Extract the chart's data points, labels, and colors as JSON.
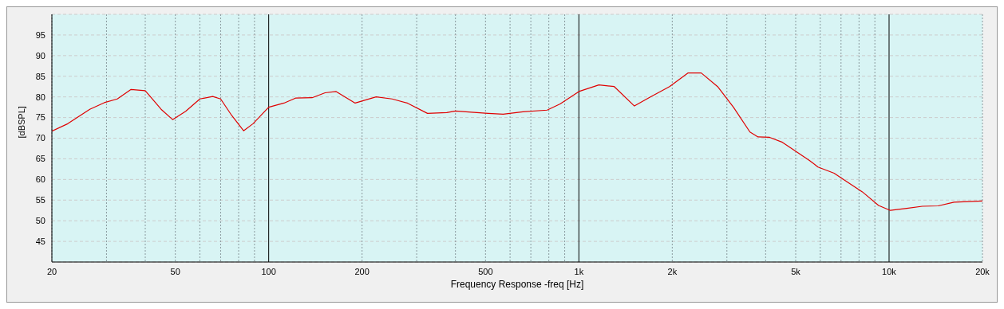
{
  "chart_data": {
    "type": "line",
    "xlabel": "Frequency Response -freq [Hz]",
    "ylabel": "[dBSPL]",
    "log": "x",
    "grid": true,
    "marker": "none",
    "line_style": "solid",
    "xlim": [
      20,
      20000
    ],
    "ylim": [
      40,
      100
    ],
    "xticks": [
      20,
      {
        "value": 30,
        "label": null
      },
      {
        "value": 40,
        "label": null
      },
      50,
      {
        "value": 60,
        "label": null
      },
      {
        "value": 70,
        "label": null
      },
      {
        "value": 80,
        "label": null
      },
      {
        "value": 90,
        "label": null
      },
      100,
      200,
      {
        "value": 300,
        "label": null
      },
      {
        "value": 400,
        "label": null
      },
      500,
      {
        "value": 600,
        "label": null
      },
      {
        "value": 700,
        "label": null
      },
      {
        "value": 800,
        "label": null
      },
      {
        "value": 900,
        "label": null
      },
      {
        "value": 1000,
        "label": "1k"
      },
      {
        "value": 2000,
        "label": "2k"
      },
      {
        "value": 3000,
        "label": null
      },
      {
        "value": 4000,
        "label": null
      },
      {
        "value": 5000,
        "label": "5k"
      },
      {
        "value": 6000,
        "label": null
      },
      {
        "value": 7000,
        "label": null
      },
      {
        "value": 8000,
        "label": null
      },
      {
        "value": 9000,
        "label": null
      },
      {
        "value": 10000,
        "label": "10k"
      },
      {
        "value": 20000,
        "label": "20k"
      }
    ],
    "yticks": [
      45,
      50,
      55,
      60,
      65,
      70,
      75,
      80,
      85,
      90,
      95
    ],
    "x": [
      20,
      22.5,
      26.5,
      29.5,
      32.5,
      36,
      40,
      45,
      49,
      54,
      60,
      66,
      70,
      76,
      83,
      89,
      100,
      112,
      122,
      138,
      152,
      165,
      190,
      222,
      250,
      280,
      325,
      375,
      400,
      450,
      510,
      570,
      660,
      790,
      870,
      1000,
      1160,
      1300,
      1510,
      1700,
      1960,
      2250,
      2480,
      2800,
      3150,
      3560,
      3780,
      4120,
      4530,
      4960,
      5560,
      5900,
      6650,
      7300,
      8200,
      9250,
      10100,
      11400,
      12800,
      14400,
      16200,
      20000
    ],
    "series": [
      {
        "color": "#e00000",
        "values": [
          71.7,
          73.5,
          77,
          78.6,
          79.5,
          81.8,
          81.5,
          77,
          74.5,
          76.5,
          79.5,
          80.1,
          79.5,
          75.5,
          71.8,
          73.5,
          77.5,
          78.5,
          79.7,
          79.8,
          81,
          81.3,
          78.5,
          80,
          79.5,
          78.5,
          76,
          76.2,
          76.6,
          76.3,
          76,
          75.8,
          76.4,
          76.8,
          78.3,
          81.3,
          82.9,
          82.5,
          77.8,
          80,
          82.5,
          85.8,
          85.8,
          82.5,
          77.5,
          71.5,
          70.3,
          70.2,
          69,
          67,
          64.5,
          63,
          61.5,
          59.5,
          57,
          53.7,
          52.5,
          53,
          53.5,
          53.6,
          54.5,
          54.8
        ]
      }
    ]
  }
}
